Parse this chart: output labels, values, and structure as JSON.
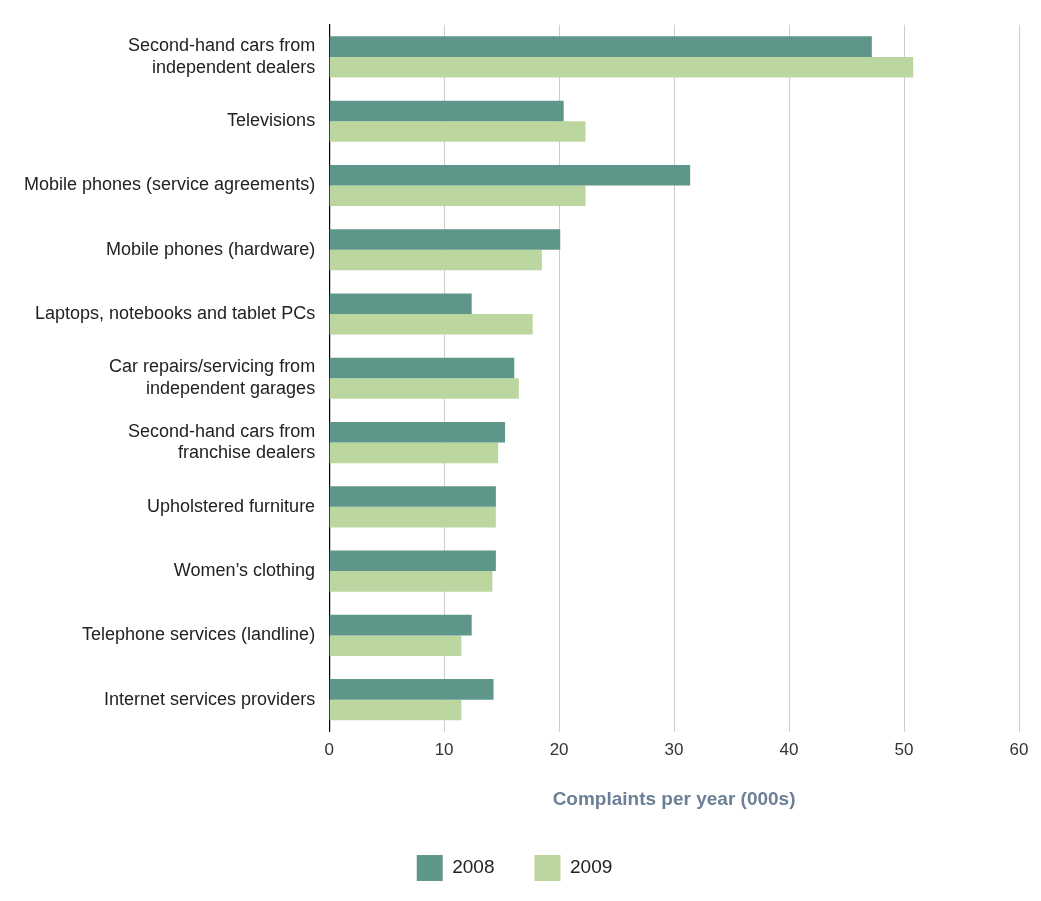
{
  "chart_data": {
    "type": "bar",
    "orientation": "horizontal",
    "xlabel": "Complaints per year (000s)",
    "categories": [
      "Second-hand cars from\nindependent dealers",
      "Televisions",
      "Mobile phones (service agreements)",
      "Mobile phones (hardware)",
      "Laptops, notebooks and tablet PCs",
      "Car repairs/servicing from\nindependent garages",
      "Second-hand cars from\nfranchise dealers",
      "Upholstered furniture",
      "Women’s clothing",
      "Telephone services (landline)",
      "Internet services providers"
    ],
    "series": [
      {
        "name": "2008",
        "color": "#5f968a",
        "values": [
          47.2,
          20.4,
          31.4,
          20.1,
          12.4,
          16.1,
          15.3,
          14.5,
          14.5,
          12.4,
          14.3
        ]
      },
      {
        "name": "2009",
        "color": "#bcd6a0",
        "values": [
          50.8,
          22.3,
          22.3,
          18.5,
          17.7,
          16.5,
          14.7,
          14.5,
          14.2,
          11.5,
          11.5
        ]
      }
    ],
    "xlim": [
      0,
      60
    ],
    "xticks": [
      0,
      10,
      20,
      30,
      40,
      50,
      60
    ],
    "grid": "x",
    "legend": "bottom"
  }
}
